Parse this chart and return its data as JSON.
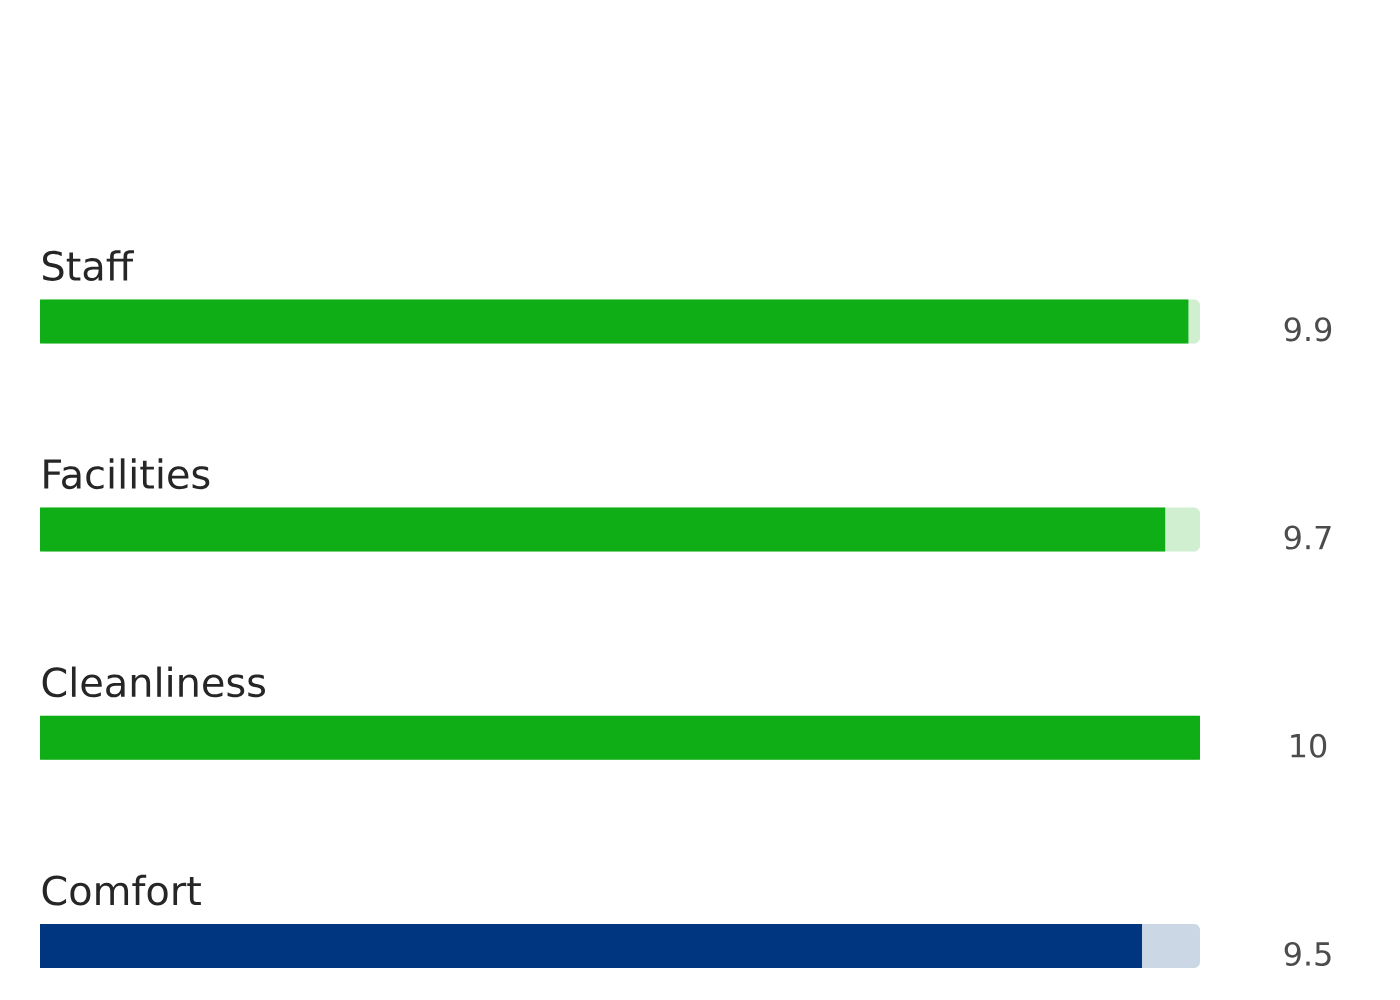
{
  "chart_data": {
    "type": "bar",
    "orientation": "horizontal",
    "data_labels": true,
    "categories": [
      "Staff",
      "Facilities",
      "Cleanliness",
      "Comfort"
    ],
    "values": [
      9.9,
      9.7,
      10,
      9.5
    ],
    "colors": [
      "#0fae16",
      "#0fae16",
      "#0fae16",
      "#003580"
    ],
    "xlim": [
      0,
      10
    ]
  }
}
